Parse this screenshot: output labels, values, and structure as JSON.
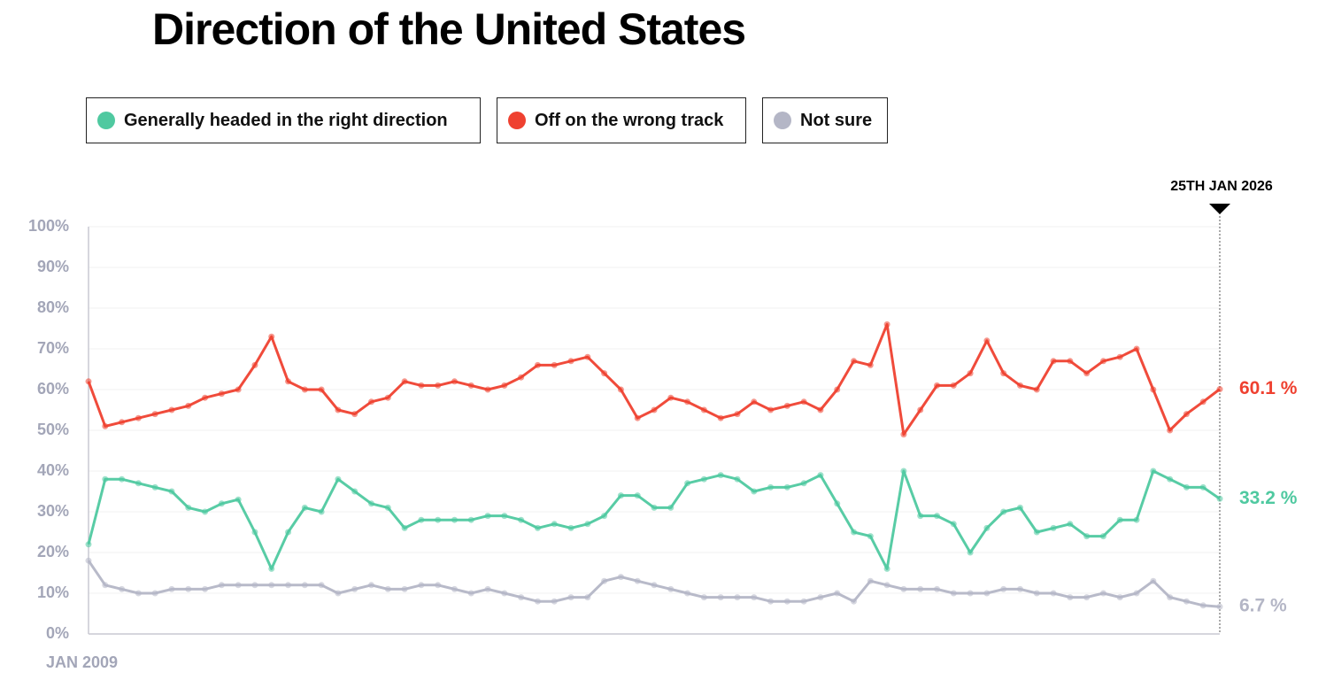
{
  "chart_data": {
    "type": "line",
    "title": "Direction of the United States",
    "categories": [
      "JAN 2009",
      null,
      null,
      null,
      null,
      null,
      null,
      null,
      null,
      null,
      null,
      null,
      null,
      null,
      null,
      null,
      null,
      null,
      null,
      null,
      null,
      null,
      null,
      null,
      null,
      null,
      null,
      null,
      null,
      null,
      null,
      null,
      null,
      null,
      null,
      null,
      null,
      null,
      null,
      null,
      null,
      null,
      null,
      null,
      null,
      null,
      null,
      null,
      null,
      null,
      null,
      null,
      null,
      null,
      null,
      null,
      null,
      null,
      null,
      null,
      null,
      null,
      null,
      null,
      null,
      null,
      null,
      null,
      "25TH JAN 2026"
    ],
    "series": [
      {
        "name": "Generally headed in the right direction",
        "color": "#4fc9a0",
        "values": [
          22,
          38,
          38,
          37,
          36,
          35,
          31,
          30,
          32,
          33,
          25,
          16,
          25,
          31,
          30,
          38,
          35,
          32,
          31,
          26,
          28,
          28,
          28,
          28,
          29,
          29,
          28,
          26,
          27,
          26,
          27,
          29,
          34,
          34,
          31,
          31,
          37,
          38,
          39,
          38,
          35,
          36,
          36,
          37,
          39,
          32,
          25,
          24,
          16,
          40,
          29,
          29,
          27,
          20,
          26,
          30,
          31,
          25,
          26,
          27,
          24,
          24,
          28,
          28,
          40,
          38,
          36,
          36,
          33.2
        ],
        "value_labels": [
          null,
          null,
          null,
          null,
          null,
          null,
          null,
          null,
          null,
          null,
          null,
          null,
          null,
          null,
          null,
          null,
          null,
          null,
          null,
          null,
          null,
          null,
          null,
          null,
          null,
          null,
          null,
          null,
          null,
          null,
          null,
          null,
          null,
          null,
          null,
          null,
          null,
          null,
          null,
          null,
          null,
          null,
          null,
          null,
          null,
          null,
          null,
          null,
          null,
          null,
          null,
          null,
          null,
          null,
          null,
          null,
          null,
          null,
          null,
          null,
          null,
          null,
          null,
          null,
          null,
          null,
          null,
          null,
          "33.2 %"
        ]
      },
      {
        "name": "Off on the wrong track",
        "color": "#ef4130",
        "values": [
          62,
          51,
          52,
          53,
          54,
          55,
          56,
          58,
          59,
          60,
          66,
          73,
          62,
          60,
          60,
          55,
          54,
          57,
          58,
          62,
          61,
          61,
          62,
          61,
          60,
          61,
          63,
          66,
          66,
          67,
          68,
          64,
          60,
          53,
          55,
          58,
          57,
          55,
          53,
          54,
          57,
          55,
          56,
          57,
          55,
          60,
          67,
          66,
          76,
          49,
          55,
          61,
          61,
          64,
          72,
          64,
          61,
          60,
          67,
          67,
          64,
          67,
          68,
          70,
          60,
          50,
          54,
          57,
          60.1
        ],
        "value_labels": [
          null,
          null,
          null,
          null,
          null,
          null,
          null,
          null,
          null,
          null,
          null,
          null,
          null,
          null,
          null,
          null,
          null,
          null,
          null,
          null,
          null,
          null,
          null,
          null,
          null,
          null,
          null,
          null,
          null,
          null,
          null,
          null,
          null,
          null,
          null,
          null,
          null,
          null,
          null,
          null,
          null,
          null,
          null,
          null,
          null,
          null,
          null,
          null,
          null,
          null,
          null,
          null,
          null,
          null,
          null,
          null,
          null,
          null,
          null,
          null,
          null,
          null,
          null,
          null,
          null,
          null,
          null,
          null,
          "60.1 %"
        ]
      },
      {
        "name": "Not sure",
        "color": "#b4b6c6",
        "values": [
          18,
          12,
          11,
          10,
          10,
          11,
          11,
          11,
          12,
          12,
          12,
          12,
          12,
          12,
          12,
          10,
          11,
          12,
          11,
          11,
          12,
          12,
          11,
          10,
          11,
          10,
          9,
          8,
          8,
          9,
          9,
          13,
          14,
          13,
          12,
          11,
          10,
          9,
          9,
          9,
          9,
          8,
          8,
          8,
          9,
          10,
          8,
          13,
          12,
          11,
          11,
          11,
          10,
          10,
          10,
          11,
          11,
          10,
          10,
          9,
          9,
          10,
          9,
          10,
          13,
          9,
          8,
          7,
          6.7
        ],
        "value_labels": [
          null,
          null,
          null,
          null,
          null,
          null,
          null,
          null,
          null,
          null,
          null,
          null,
          null,
          null,
          null,
          null,
          null,
          null,
          null,
          null,
          null,
          null,
          null,
          null,
          null,
          null,
          null,
          null,
          null,
          null,
          null,
          null,
          null,
          null,
          null,
          null,
          null,
          null,
          null,
          null,
          null,
          null,
          null,
          null,
          null,
          null,
          null,
          null,
          null,
          null,
          null,
          null,
          null,
          null,
          null,
          null,
          null,
          null,
          null,
          null,
          null,
          null,
          null,
          null,
          null,
          null,
          null,
          null,
          "6.7 %"
        ]
      }
    ],
    "ylim": [
      0,
      100
    ],
    "yticks": [
      {
        "value": 0,
        "label": "0%"
      },
      {
        "value": 10,
        "label": "10%"
      },
      {
        "value": 20,
        "label": "20%"
      },
      {
        "value": 30,
        "label": "30%"
      },
      {
        "value": 40,
        "label": "40%"
      },
      {
        "value": 50,
        "label": "50%"
      },
      {
        "value": 60,
        "label": "60%"
      },
      {
        "value": 70,
        "label": "70%"
      },
      {
        "value": 80,
        "label": "80%"
      },
      {
        "value": 90,
        "label": "90%"
      },
      {
        "value": 100,
        "label": "100%"
      }
    ],
    "grid": true
  }
}
